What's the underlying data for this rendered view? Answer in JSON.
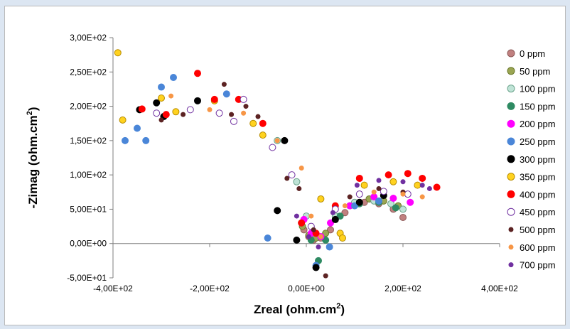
{
  "chart_data": {
    "type": "scatter",
    "title": "",
    "xlabel": "Zreal (ohm.cm",
    "xlabel_sup": "2",
    "xlabel_close": ")",
    "ylabel": "-Zimag (ohm.cm",
    "ylabel_sup": "2",
    "ylabel_close": ")",
    "xlim": [
      -400,
      400
    ],
    "ylim": [
      -50,
      300
    ],
    "x_ticks": [
      -400,
      -200,
      0,
      200,
      400
    ],
    "x_tick_labels": [
      "-4,00E+02",
      "-2,00E+02",
      "0,00E+00",
      "2,00E+02",
      "4,00E+02"
    ],
    "y_ticks": [
      -50,
      0,
      50,
      100,
      150,
      200,
      250,
      300
    ],
    "y_tick_labels": [
      "-5,00E+01",
      "0,00E+00",
      "5,00E+01",
      "1,00E+02",
      "1,50E+02",
      "2,00E+02",
      "2,50E+02",
      "3,00E+02"
    ],
    "grid": false,
    "legend_position": "right",
    "series": [
      {
        "name": "0 ppm",
        "color": "#c0807f",
        "stroke": "#8e5b5a",
        "marker": "circle",
        "points": [
          [
            -5,
            20
          ],
          [
            5,
            10
          ],
          [
            15,
            5
          ],
          [
            30,
            8
          ],
          [
            50,
            20
          ],
          [
            80,
            45
          ],
          [
            120,
            60
          ],
          [
            150,
            58
          ],
          [
            180,
            50
          ],
          [
            200,
            38
          ]
        ]
      },
      {
        "name": "50 ppm",
        "color": "#9aa552",
        "stroke": "#6b7a2b",
        "marker": "circle",
        "points": [
          [
            -8,
            25
          ],
          [
            5,
            12
          ],
          [
            20,
            8
          ],
          [
            40,
            15
          ],
          [
            60,
            35
          ],
          [
            90,
            55
          ],
          [
            130,
            65
          ],
          [
            160,
            62
          ],
          [
            190,
            55
          ]
        ]
      },
      {
        "name": "100 ppm",
        "color": "#bfe3d6",
        "stroke": "#6aa28a",
        "marker": "circle",
        "points": [
          [
            -60,
            150
          ],
          [
            -20,
            90
          ],
          [
            0,
            40
          ],
          [
            15,
            15
          ],
          [
            30,
            10
          ],
          [
            60,
            40
          ],
          [
            100,
            60
          ],
          [
            140,
            62
          ],
          [
            175,
            58
          ],
          [
            200,
            50
          ]
        ]
      },
      {
        "name": "150 ppm",
        "color": "#2e8a62",
        "stroke": "#2e8a62",
        "marker": "circle",
        "points": [
          [
            -10,
            30
          ],
          [
            10,
            5
          ],
          [
            25,
            -25
          ],
          [
            40,
            5
          ],
          [
            70,
            40
          ],
          [
            110,
            58
          ],
          [
            150,
            60
          ],
          [
            185,
            52
          ]
        ]
      },
      {
        "name": "200 ppm",
        "color": "#ff00ff",
        "stroke": "#ff00ff",
        "marker": "circle",
        "points": [
          [
            -5,
            35
          ],
          [
            10,
            15
          ],
          [
            30,
            10
          ],
          [
            50,
            30
          ],
          [
            90,
            55
          ],
          [
            140,
            68
          ],
          [
            180,
            66
          ],
          [
            215,
            60
          ]
        ]
      },
      {
        "name": "250 ppm",
        "color": "#4a86d8",
        "stroke": "#4a86d8",
        "marker": "circle",
        "points": [
          [
            -375,
            150
          ],
          [
            -350,
            168
          ],
          [
            -332,
            150
          ],
          [
            -300,
            228
          ],
          [
            -275,
            242
          ],
          [
            -165,
            218
          ],
          [
            -80,
            8
          ],
          [
            20,
            -32
          ],
          [
            48,
            -5
          ],
          [
            100,
            55
          ],
          [
            150,
            62
          ]
        ]
      },
      {
        "name": "300 ppm",
        "color": "#000000",
        "stroke": "#000000",
        "marker": "circle",
        "points": [
          [
            -345,
            195
          ],
          [
            -310,
            205
          ],
          [
            -295,
            185
          ],
          [
            -225,
            208
          ],
          [
            -60,
            48
          ],
          [
            -45,
            150
          ],
          [
            -20,
            5
          ],
          [
            20,
            -35
          ],
          [
            60,
            35
          ],
          [
            110,
            60
          ],
          [
            160,
            70
          ]
        ]
      },
      {
        "name": "350 ppm",
        "color": "#ffd21f",
        "stroke": "#b68b00",
        "marker": "circle",
        "points": [
          [
            -390,
            278
          ],
          [
            -380,
            180
          ],
          [
            -300,
            212
          ],
          [
            -270,
            192
          ],
          [
            -190,
            208
          ],
          [
            -110,
            175
          ],
          [
            -90,
            158
          ],
          [
            30,
            65
          ],
          [
            70,
            15
          ],
          [
            75,
            8
          ],
          [
            120,
            85
          ],
          [
            180,
            90
          ],
          [
            230,
            85
          ]
        ]
      },
      {
        "name": "400 ppm",
        "color": "#ff0000",
        "stroke": "#ff0000",
        "marker": "circle",
        "points": [
          [
            -340,
            196
          ],
          [
            -290,
            188
          ],
          [
            -225,
            248
          ],
          [
            -190,
            210
          ],
          [
            -140,
            210
          ],
          [
            -90,
            175
          ],
          [
            -10,
            30
          ],
          [
            20,
            15
          ],
          [
            60,
            55
          ],
          [
            110,
            95
          ],
          [
            170,
            100
          ],
          [
            210,
            102
          ],
          [
            240,
            95
          ],
          [
            270,
            82
          ]
        ]
      },
      {
        "name": "450 ppm",
        "color": "#ffffff",
        "stroke": "#7030a0",
        "marker": "circle",
        "points": [
          [
            -310,
            190
          ],
          [
            -240,
            195
          ],
          [
            -180,
            190
          ],
          [
            -130,
            210
          ],
          [
            -150,
            178
          ],
          [
            -70,
            140
          ],
          [
            -30,
            100
          ],
          [
            10,
            25
          ],
          [
            60,
            50
          ],
          [
            110,
            72
          ],
          [
            160,
            76
          ],
          [
            210,
            72
          ]
        ]
      },
      {
        "name": "500 ppm",
        "color": "#5c2323",
        "stroke": "#5c2323",
        "marker": "circle",
        "points": [
          [
            -300,
            180
          ],
          [
            -255,
            188
          ],
          [
            -170,
            232
          ],
          [
            -155,
            188
          ],
          [
            -125,
            200
          ],
          [
            -100,
            185
          ],
          [
            -40,
            95
          ],
          [
            -15,
            80
          ],
          [
            15,
            20
          ],
          [
            40,
            -47
          ],
          [
            90,
            68
          ],
          [
            150,
            80
          ],
          [
            200,
            75
          ]
        ]
      },
      {
        "name": "600 ppm",
        "color": "#f79646",
        "stroke": "#f79646",
        "marker": "circle",
        "points": [
          [
            -280,
            215
          ],
          [
            -200,
            195
          ],
          [
            -130,
            190
          ],
          [
            -60,
            150
          ],
          [
            -10,
            110
          ],
          [
            10,
            40
          ],
          [
            30,
            10
          ],
          [
            80,
            55
          ],
          [
            140,
            75
          ],
          [
            200,
            72
          ],
          [
            240,
            68
          ]
        ]
      },
      {
        "name": "700 ppm",
        "color": "#7030a0",
        "stroke": "#7030a0",
        "marker": "circle",
        "points": [
          [
            -20,
            40
          ],
          [
            5,
            10
          ],
          [
            25,
            -5
          ],
          [
            55,
            45
          ],
          [
            105,
            85
          ],
          [
            150,
            92
          ],
          [
            200,
            90
          ],
          [
            240,
            85
          ],
          [
            255,
            80
          ]
        ]
      }
    ]
  }
}
